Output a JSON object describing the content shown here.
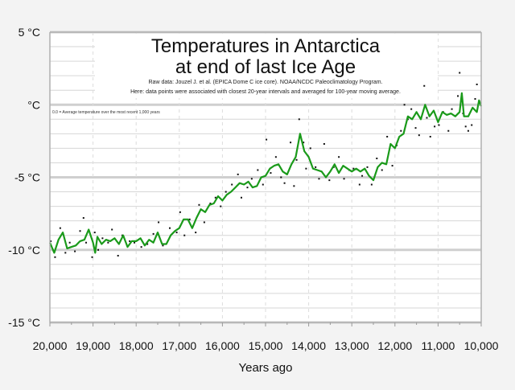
{
  "chart_data": {
    "type": "line",
    "title": [
      "Temperatures in Antarctica",
      "at end of last Ice Age"
    ],
    "subtitle": [
      "Raw data: Jouzel J. et al. (EPICA Dome C ice core). NOAA/NCDC Paleoclimatology Program.",
      "Here: data points were associated with closest 20-year intervals and averaged for 100-year moving average."
    ],
    "note": "0.0 = Average temperature over the most recent 1,000 years",
    "xlabel": "Years ago",
    "ylabel": "",
    "xlim": [
      20000,
      10000
    ],
    "ylim": [
      -15,
      5
    ],
    "x_ticks": [
      20000,
      19000,
      18000,
      17000,
      16000,
      15000,
      14000,
      13000,
      12000,
      11000,
      10000
    ],
    "x_tick_labels": [
      "20,000",
      "19,000",
      "18,000",
      "17,000",
      "16,000",
      "15,000",
      "14,000",
      "13,000",
      "12,000",
      "11,000",
      "10,000"
    ],
    "y_ticks": [
      5,
      0,
      -5,
      -10,
      -15
    ],
    "y_tick_labels": [
      "5 °C",
      "°C",
      "-5 °C",
      "-10 °C",
      "-15 °C"
    ],
    "grid": true,
    "colors": {
      "moving_average": "#1a9a1a",
      "points": "#111111",
      "background": "#f3f3f3",
      "plot": "#ffffff"
    },
    "moving_average": {
      "x": [
        20000,
        19900,
        19800,
        19700,
        19600,
        19500,
        19400,
        19300,
        19200,
        19100,
        19000,
        18950,
        18900,
        18800,
        18700,
        18600,
        18500,
        18400,
        18300,
        18200,
        18100,
        18000,
        17900,
        17800,
        17700,
        17600,
        17500,
        17400,
        17300,
        17200,
        17100,
        17000,
        16900,
        16800,
        16700,
        16600,
        16500,
        16400,
        16300,
        16200,
        16100,
        16000,
        15900,
        15800,
        15700,
        15600,
        15500,
        15400,
        15300,
        15200,
        15100,
        15000,
        14900,
        14800,
        14700,
        14600,
        14500,
        14400,
        14300,
        14200,
        14100,
        14000,
        13900,
        13800,
        13700,
        13600,
        13500,
        13400,
        13300,
        13200,
        13100,
        13000,
        12900,
        12800,
        12700,
        12600,
        12500,
        12400,
        12300,
        12200,
        12100,
        12000,
        11900,
        11800,
        11700,
        11600,
        11500,
        11400,
        11300,
        11200,
        11100,
        11000,
        10900,
        10800,
        10700,
        10600,
        10500,
        10450,
        10400,
        10300,
        10200,
        10100,
        10050,
        10000
      ],
      "y": [
        -9.5,
        -10.2,
        -9.3,
        -8.8,
        -9.9,
        -9.8,
        -9.7,
        -9.4,
        -9.3,
        -8.6,
        -9.5,
        -10.2,
        -9.1,
        -9.6,
        -9.3,
        -9.4,
        -9.2,
        -9.6,
        -9.0,
        -9.8,
        -9.4,
        -9.4,
        -9.2,
        -9.7,
        -9.3,
        -9.5,
        -8.8,
        -9.6,
        -9.6,
        -9.0,
        -8.7,
        -8.5,
        -7.9,
        -7.9,
        -8.5,
        -7.8,
        -7.2,
        -7.4,
        -6.9,
        -6.8,
        -6.3,
        -6.6,
        -6.2,
        -6.0,
        -5.7,
        -5.4,
        -5.5,
        -5.3,
        -5.7,
        -5.6,
        -5.0,
        -4.9,
        -4.4,
        -4.2,
        -4.1,
        -4.6,
        -4.8,
        -4.1,
        -3.6,
        -2.0,
        -3.2,
        -3.6,
        -4.4,
        -4.5,
        -4.6,
        -5.0,
        -4.6,
        -4.1,
        -4.7,
        -4.2,
        -4.4,
        -4.6,
        -4.4,
        -4.6,
        -4.4,
        -4.9,
        -5.2,
        -4.3,
        -4.0,
        -4.1,
        -2.7,
        -3.0,
        -2.2,
        -2.0,
        -0.8,
        -1.0,
        -0.5,
        -1.0,
        0.0,
        -0.8,
        -0.4,
        -1.2,
        -0.5,
        -0.7,
        -0.6,
        -0.8,
        -0.5,
        0.8,
        -0.8,
        -0.8,
        -0.2,
        -0.5,
        0.3,
        -0.1
      ]
    },
    "data_points": {
      "x": [
        19980,
        19880,
        19760,
        19640,
        19540,
        19420,
        19300,
        19220,
        19160,
        19020,
        18960,
        18880,
        18780,
        18650,
        18560,
        18420,
        18320,
        18150,
        18040,
        17880,
        17740,
        17600,
        17480,
        17380,
        17220,
        17060,
        16980,
        16880,
        16760,
        16620,
        16540,
        16420,
        16280,
        16160,
        16040,
        15920,
        15780,
        15640,
        15560,
        15420,
        15320,
        15180,
        15060,
        14980,
        14880,
        14760,
        14640,
        14560,
        14420,
        14340,
        14280,
        14220,
        14120,
        14060,
        13960,
        13840,
        13760,
        13640,
        13520,
        13420,
        13300,
        13180,
        13060,
        12960,
        12820,
        12760,
        12640,
        12540,
        12420,
        12300,
        12180,
        12060,
        11960,
        11860,
        11780,
        11700,
        11620,
        11520,
        11440,
        11320,
        11260,
        11180,
        11080,
        10980,
        10880,
        10760,
        10680,
        10540,
        10500,
        10420,
        10360,
        10300,
        10220,
        10140,
        10100,
        10040
      ],
      "y": [
        -9.4,
        -10.5,
        -8.5,
        -10.2,
        -9.5,
        -10.1,
        -8.7,
        -7.8,
        -9.5,
        -10.5,
        -8.8,
        -10.0,
        -9.2,
        -9.5,
        -8.6,
        -10.4,
        -9.0,
        -9.4,
        -9.5,
        -9.8,
        -9.6,
        -8.9,
        -8.1,
        -9.7,
        -8.5,
        -8.8,
        -7.4,
        -9.0,
        -7.9,
        -8.8,
        -6.9,
        -8.1,
        -6.8,
        -6.4,
        -7.0,
        -6.0,
        -5.5,
        -4.8,
        -6.4,
        -5.7,
        -5.1,
        -4.5,
        -5.5,
        -2.4,
        -4.7,
        -3.6,
        -5.0,
        -5.4,
        -2.6,
        -5.6,
        -3.8,
        -1.0,
        -2.6,
        -4.4,
        -3.0,
        -4.3,
        -5.1,
        -2.7,
        -5.2,
        -4.3,
        -3.6,
        -5.1,
        -4.5,
        -4.4,
        -5.5,
        -4.9,
        -4.3,
        -5.5,
        -3.7,
        -4.5,
        -2.2,
        -4.2,
        -2.8,
        -1.8,
        0.0,
        -1.0,
        -0.3,
        -1.6,
        -2.1,
        1.3,
        -0.9,
        -2.2,
        -1.5,
        -1.4,
        -0.5,
        -1.8,
        -0.3,
        0.6,
        2.2,
        -0.6,
        -1.5,
        -1.8,
        -1.4,
        0.4,
        1.4,
        0.2
      ]
    }
  }
}
